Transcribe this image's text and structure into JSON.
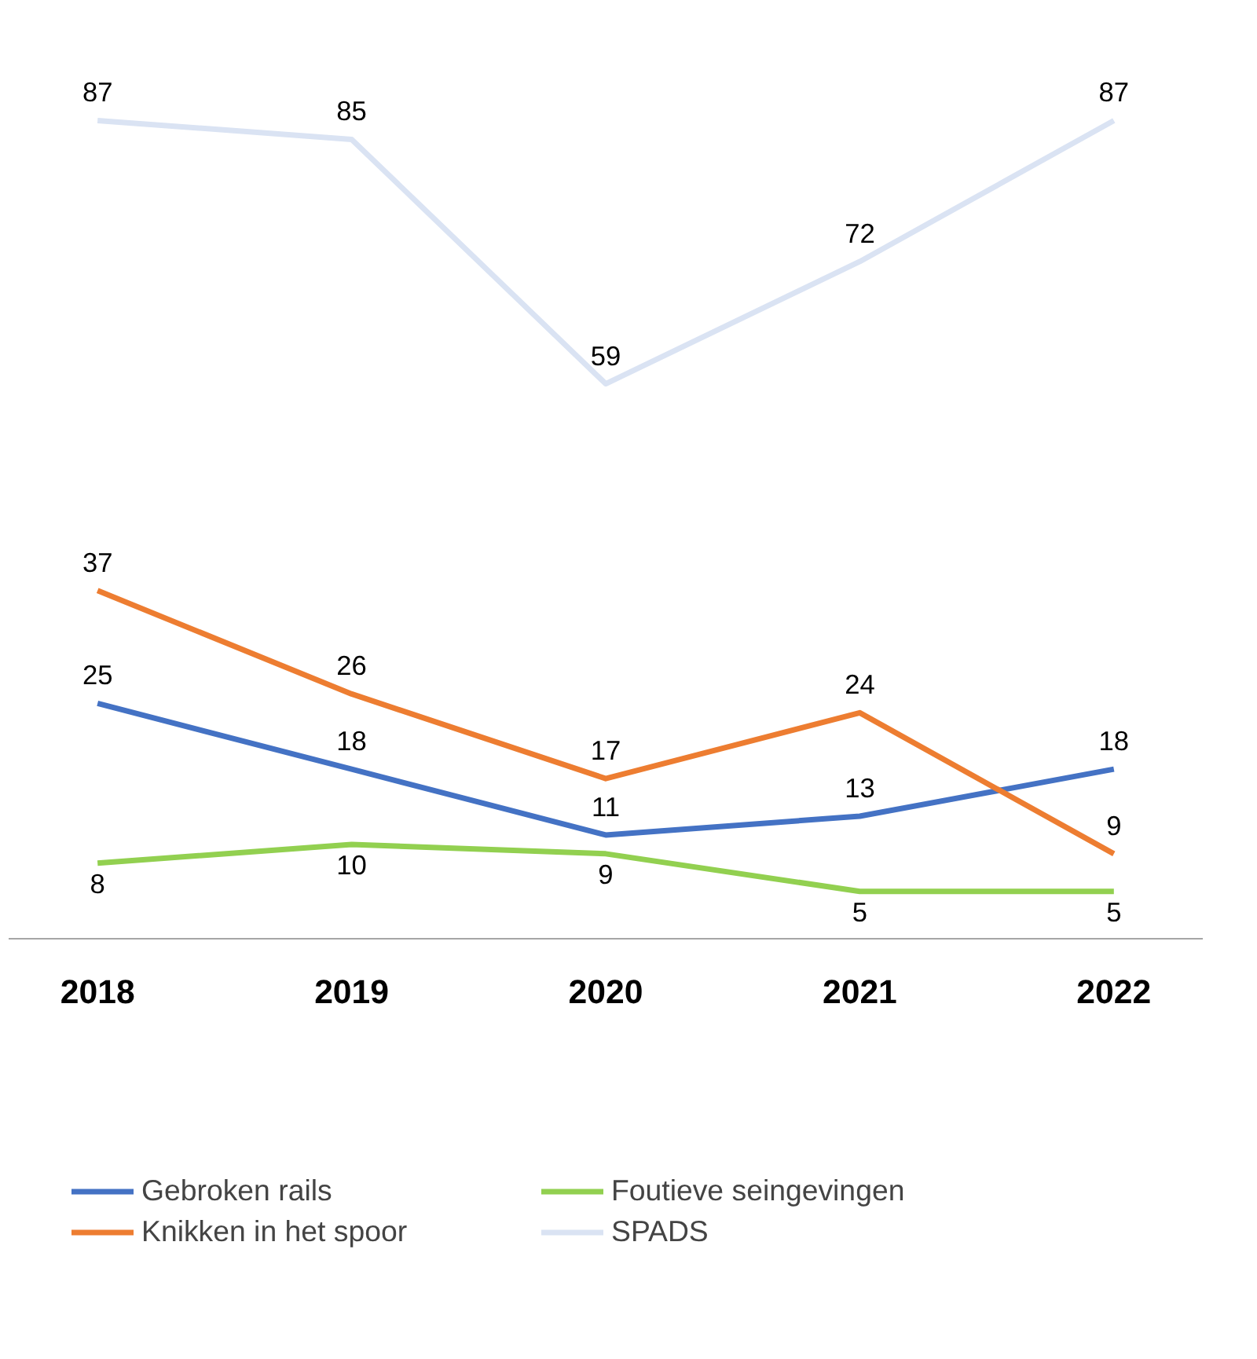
{
  "chart_data": {
    "type": "line",
    "categories": [
      "2018",
      "2019",
      "2020",
      "2021",
      "2022"
    ],
    "series": [
      {
        "name": "Gebroken rails",
        "color": "#4472c4",
        "values": [
          25,
          18,
          11,
          13,
          18
        ]
      },
      {
        "name": "Knikken in het spoor",
        "color": "#ed7d31",
        "values": [
          37,
          26,
          17,
          24,
          9
        ]
      },
      {
        "name": "Foutieve seingevingen",
        "color": "#92d050",
        "values": [
          8,
          10,
          9,
          5,
          5
        ]
      },
      {
        "name": "SPADS",
        "color": "#dae3f3",
        "values": [
          87,
          85,
          59,
          72,
          87
        ]
      }
    ],
    "data_labels": true,
    "grid": false,
    "legend": "bottom",
    "tick_labels": "x",
    "marker": "none",
    "line_style": "solid"
  }
}
